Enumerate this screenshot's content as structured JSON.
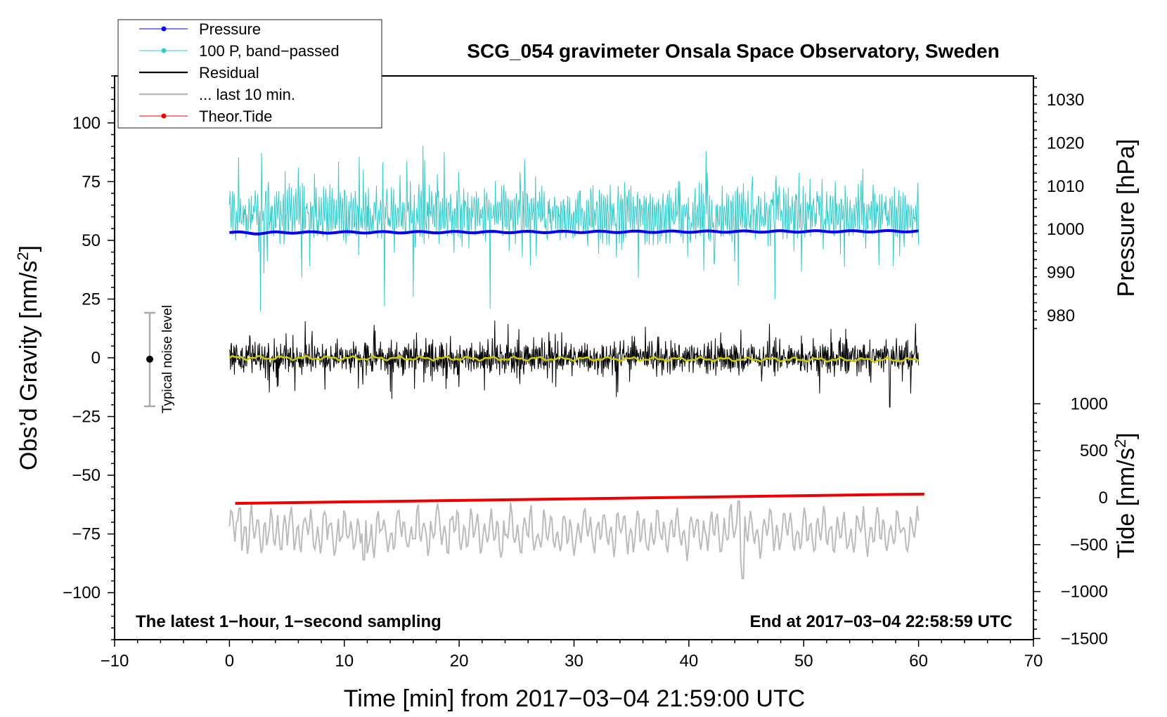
{
  "chart_data": {
    "type": "line",
    "title": "SCG_054 gravimeter Onsala Space Observatory, Sweden",
    "xlabel": "Time [min] from 2017−03−04 21:59:00 UTC",
    "ylabel_left": "Obs’d Gravity [nm/s²]",
    "ylabel_left_base": "Obs’d Gravity [nm/s",
    "ylabel_left_tail": "]",
    "ylabel_right_pressure": "Pressure [hPa]",
    "ylabel_right_tide_base": "Tide [nm/s",
    "ylabel_right_tide_tail": "]",
    "superscript": "2",
    "xlim": [
      -10,
      70
    ],
    "ylim_left": [
      -120,
      120
    ],
    "x_ticks": [
      -10,
      0,
      10,
      20,
      30,
      40,
      50,
      60,
      70
    ],
    "x_tick_labels": [
      "−10",
      "0",
      "10",
      "20",
      "30",
      "40",
      "50",
      "60",
      "70"
    ],
    "y_left_ticks": [
      100,
      75,
      50,
      25,
      0,
      -25,
      -50,
      -75,
      -100
    ],
    "y_left_tick_labels": [
      "100",
      "75",
      "50",
      "25",
      "0",
      "−25",
      "−50",
      "−75",
      "−100"
    ],
    "pressure_ticks": [
      1030,
      1020,
      1010,
      1000,
      990,
      980
    ],
    "pressure_tick_labels": [
      "1030",
      "1020",
      "1010",
      "1000",
      "990",
      "980"
    ],
    "tide_ticks": [
      1000,
      500,
      0,
      -500,
      -1000,
      -1500
    ],
    "tide_tick_labels": [
      "1000",
      "500",
      "0",
      "−500",
      "−1000",
      "−1500"
    ],
    "series": [
      {
        "name": "Pressure",
        "color": "#0000ee",
        "values_approx": {
          "start": 53.3,
          "end": 53.9
        }
      },
      {
        "name": "100 P, band−passed",
        "color": "#33cccc",
        "values_approx": {
          "center": 61,
          "min": 20,
          "max": 97
        }
      },
      {
        "name": "Residual",
        "color": "#000000",
        "values_approx": {
          "center": 0,
          "min": -21,
          "max": 15
        }
      },
      {
        "name": "... last 10 min.",
        "color": "#bbbbbb",
        "values_approx": {
          "center": -74,
          "min": -95,
          "max": -60
        }
      },
      {
        "name": "Theor.Tide",
        "color": "#ee0000",
        "values_approx": {
          "start": -62,
          "end": -58
        }
      }
    ],
    "running_mean_color": "#cccc00",
    "noise_bar": {
      "label": "Typical noise level",
      "x": -7,
      "center": 0,
      "low": -20,
      "high": 20,
      "color": "#aaaaaa"
    },
    "caption_left": "The latest 1−hour, 1−second sampling",
    "caption_right": "End at 2017−03−04 22:58:59 UTC"
  }
}
